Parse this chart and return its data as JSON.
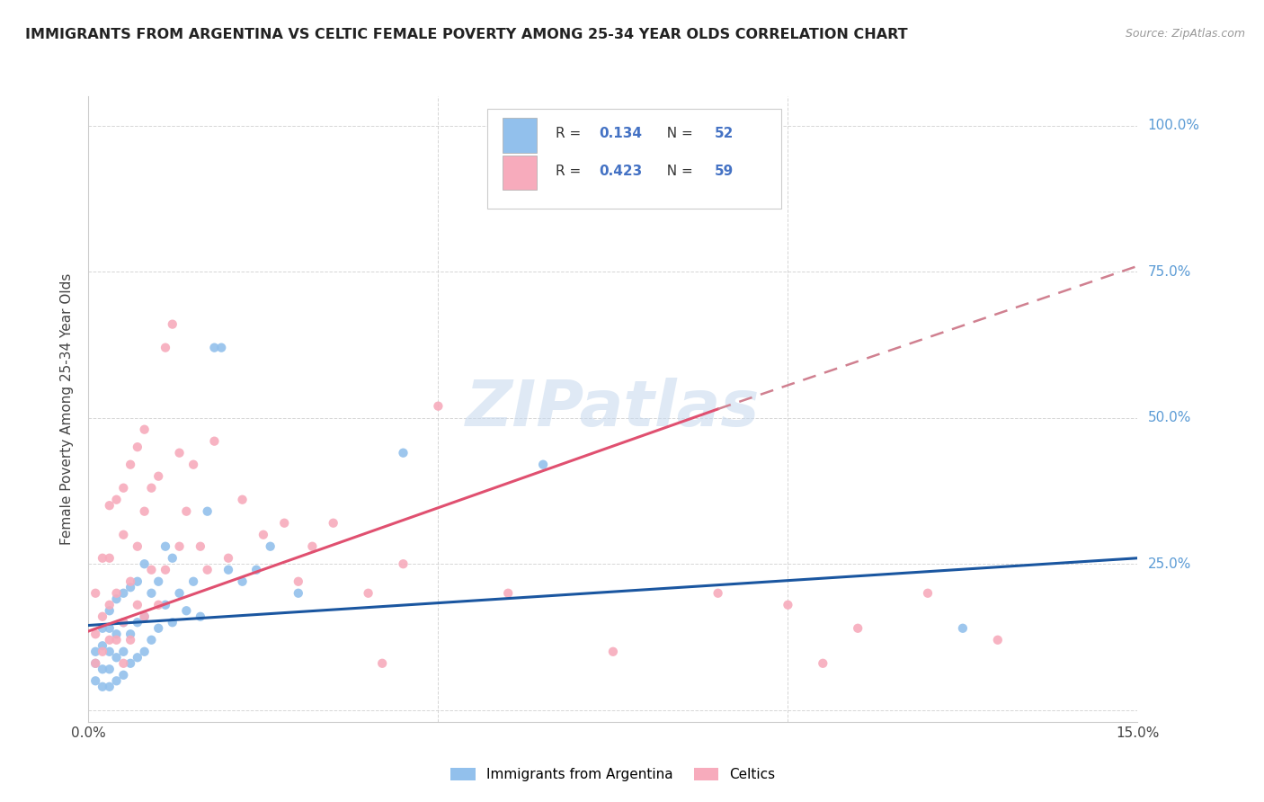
{
  "title": "IMMIGRANTS FROM ARGENTINA VS CELTIC FEMALE POVERTY AMONG 25-34 YEAR OLDS CORRELATION CHART",
  "source": "Source: ZipAtlas.com",
  "ylabel": "Female Poverty Among 25-34 Year Olds",
  "xlim": [
    0.0,
    0.15
  ],
  "ylim": [
    -0.02,
    1.05
  ],
  "blue_color": "#92C0EC",
  "pink_color": "#F7ABBC",
  "blue_line_color": "#1A56A0",
  "pink_line_color": "#E05070",
  "pink_dash_color": "#D08090",
  "watermark": "ZIPatlas",
  "legend1_R": "0.134",
  "legend1_N": "52",
  "legend2_R": "0.423",
  "legend2_N": "59",
  "blue_trend": [
    0.0,
    0.145,
    0.15,
    0.26
  ],
  "pink_trend_solid": [
    0.0,
    0.135,
    0.09,
    0.515
  ],
  "pink_trend_dash": [
    0.09,
    0.515,
    0.155,
    0.78
  ],
  "blue_scatter_x": [
    0.001,
    0.001,
    0.001,
    0.002,
    0.002,
    0.002,
    0.002,
    0.003,
    0.003,
    0.003,
    0.003,
    0.003,
    0.004,
    0.004,
    0.004,
    0.004,
    0.005,
    0.005,
    0.005,
    0.005,
    0.006,
    0.006,
    0.006,
    0.007,
    0.007,
    0.007,
    0.008,
    0.008,
    0.008,
    0.009,
    0.009,
    0.01,
    0.01,
    0.011,
    0.011,
    0.012,
    0.012,
    0.013,
    0.014,
    0.015,
    0.016,
    0.017,
    0.018,
    0.019,
    0.02,
    0.022,
    0.024,
    0.026,
    0.03,
    0.045,
    0.065,
    0.125
  ],
  "blue_scatter_y": [
    0.05,
    0.08,
    0.1,
    0.04,
    0.07,
    0.11,
    0.14,
    0.04,
    0.07,
    0.1,
    0.14,
    0.17,
    0.05,
    0.09,
    0.13,
    0.19,
    0.06,
    0.1,
    0.15,
    0.2,
    0.08,
    0.13,
    0.21,
    0.09,
    0.15,
    0.22,
    0.1,
    0.16,
    0.25,
    0.12,
    0.2,
    0.14,
    0.22,
    0.18,
    0.28,
    0.15,
    0.26,
    0.2,
    0.17,
    0.22,
    0.16,
    0.34,
    0.62,
    0.62,
    0.24,
    0.22,
    0.24,
    0.28,
    0.2,
    0.44,
    0.42,
    0.14
  ],
  "pink_scatter_x": [
    0.001,
    0.001,
    0.001,
    0.002,
    0.002,
    0.002,
    0.003,
    0.003,
    0.003,
    0.003,
    0.004,
    0.004,
    0.004,
    0.005,
    0.005,
    0.005,
    0.005,
    0.006,
    0.006,
    0.006,
    0.007,
    0.007,
    0.007,
    0.008,
    0.008,
    0.008,
    0.009,
    0.009,
    0.01,
    0.01,
    0.011,
    0.011,
    0.012,
    0.013,
    0.013,
    0.014,
    0.015,
    0.016,
    0.017,
    0.018,
    0.02,
    0.022,
    0.025,
    0.028,
    0.03,
    0.032,
    0.035,
    0.04,
    0.042,
    0.045,
    0.05,
    0.06,
    0.075,
    0.09,
    0.1,
    0.105,
    0.11,
    0.12,
    0.13
  ],
  "pink_scatter_y": [
    0.08,
    0.13,
    0.2,
    0.1,
    0.16,
    0.26,
    0.12,
    0.18,
    0.26,
    0.35,
    0.12,
    0.2,
    0.36,
    0.08,
    0.15,
    0.3,
    0.38,
    0.12,
    0.22,
    0.42,
    0.18,
    0.28,
    0.45,
    0.16,
    0.34,
    0.48,
    0.24,
    0.38,
    0.18,
    0.4,
    0.24,
    0.62,
    0.66,
    0.28,
    0.44,
    0.34,
    0.42,
    0.28,
    0.24,
    0.46,
    0.26,
    0.36,
    0.3,
    0.32,
    0.22,
    0.28,
    0.32,
    0.2,
    0.08,
    0.25,
    0.52,
    0.2,
    0.1,
    0.2,
    0.18,
    0.08,
    0.14,
    0.2,
    0.12
  ]
}
